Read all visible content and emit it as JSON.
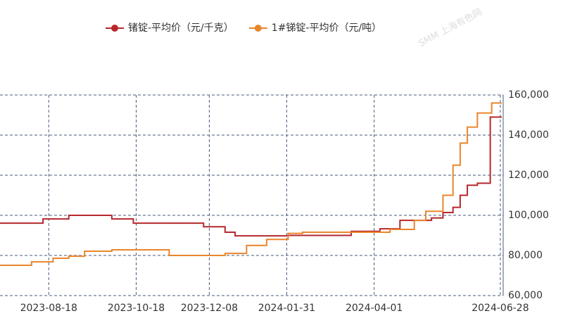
{
  "chart_data": {
    "type": "line",
    "step": true,
    "grid": true,
    "legend": "top",
    "watermark": "SMM 上海有色网",
    "x": [
      "2023-07-15",
      "2023-08-06",
      "2023-08-14",
      "2023-08-21",
      "2023-09-01",
      "2023-09-12",
      "2023-10-01",
      "2023-10-16",
      "2023-11-10",
      "2023-12-04",
      "2023-12-19",
      "2023-12-26",
      "2024-01-03",
      "2024-01-17",
      "2024-02-01",
      "2024-02-11",
      "2024-03-16",
      "2024-04-05",
      "2024-04-12",
      "2024-04-19",
      "2024-04-29",
      "2024-05-07",
      "2024-05-11",
      "2024-05-19",
      "2024-05-26",
      "2024-05-31",
      "2024-06-05",
      "2024-06-12",
      "2024-06-21",
      "2024-06-22",
      "2024-06-28"
    ],
    "xlim": [
      "2023-07-15",
      "2024-06-30"
    ],
    "xticks": [
      "2023-08-18",
      "2023-10-18",
      "2023-12-08",
      "2024-01-31",
      "2024-04-01",
      "2024-06-28"
    ],
    "ylim": [
      6000,
      16000
    ],
    "y2lim": [
      60000,
      160000
    ],
    "y2ticks": [
      {
        "value": 60000,
        "label": "60,000"
      },
      {
        "value": 80000,
        "label": "80,000"
      },
      {
        "value": 100000,
        "label": "100,000"
      },
      {
        "value": 120000,
        "label": "120,000"
      },
      {
        "value": 140000,
        "label": "140,000"
      },
      {
        "value": 160000,
        "label": "160,000"
      }
    ],
    "series": [
      {
        "name": "锗锭-平均价（元/千克）",
        "color": "#b5282d",
        "axis": "y",
        "values": [
          9610,
          9610,
          9820,
          9820,
          10000,
          10000,
          9820,
          9610,
          9610,
          9430,
          9160,
          8980,
          8980,
          8980,
          9000,
          9000,
          9200,
          9330,
          9330,
          9750,
          9750,
          9750,
          9870,
          10140,
          10400,
          11000,
          11500,
          11600,
          14900,
          14900,
          14900
        ]
      },
      {
        "name": "1#锑锭-平均价（元/吨）",
        "color": "#e8862c",
        "axis": "y2",
        "values": [
          75100,
          76800,
          76800,
          78600,
          79600,
          82100,
          82800,
          82800,
          80000,
          80000,
          81000,
          81000,
          85000,
          88000,
          91000,
          91600,
          91600,
          91600,
          93000,
          93000,
          97500,
          102000,
          102000,
          110000,
          125000,
          136000,
          144000,
          151000,
          151000,
          156000,
          156000
        ]
      }
    ]
  }
}
